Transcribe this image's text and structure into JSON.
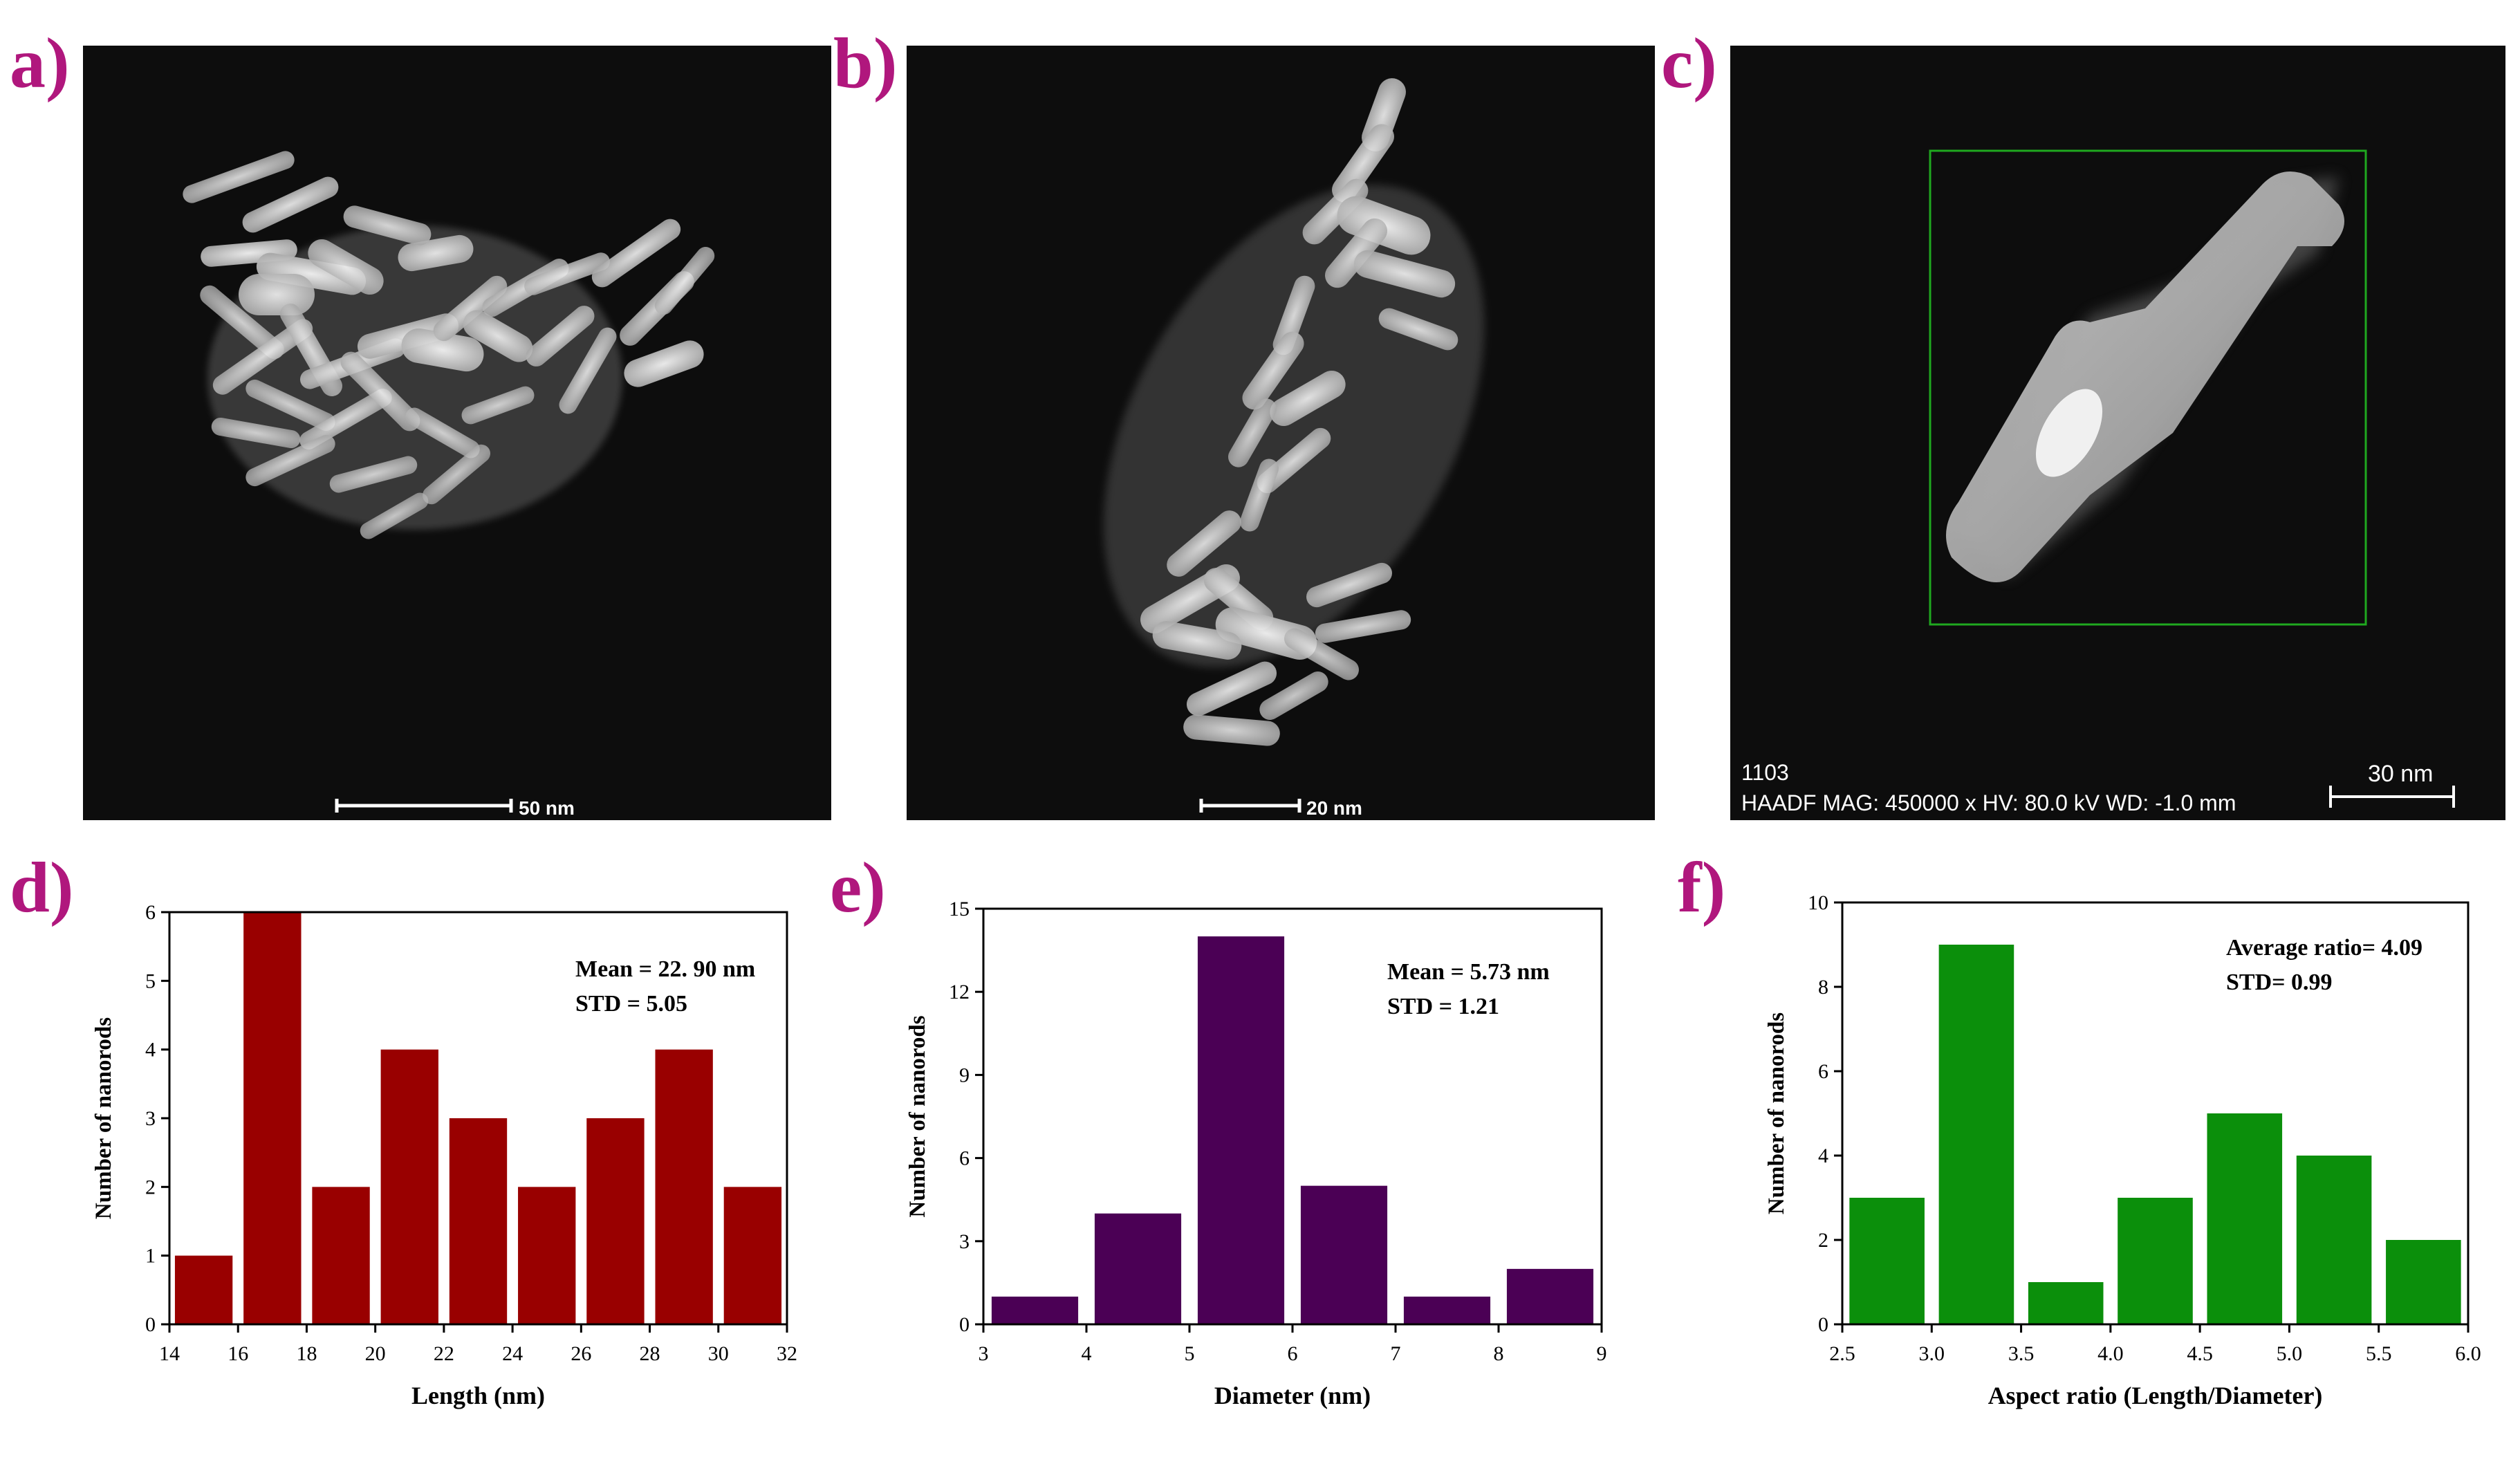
{
  "panel_labels": [
    "a)",
    "b)",
    "c)",
    "d)",
    "e)",
    "f)"
  ],
  "micrographs": {
    "a": {
      "scalebar_label": "50 nm"
    },
    "b": {
      "scalebar_label": "20 nm"
    },
    "c": {
      "image_id": "1103",
      "info_line": "HAADF  MAG: 450000 x  HV: 80.0 kV  WD: -1.0 mm",
      "scalebar_label": "30 nm",
      "roi_color": "#1fa81f"
    }
  },
  "chart_data": [
    {
      "panel": "d",
      "type": "bar",
      "xlabel": "Length (nm)",
      "ylabel": "Number of nanorods",
      "bin_edges": [
        14,
        16,
        18,
        20,
        22,
        24,
        26,
        28,
        30,
        32
      ],
      "values": [
        1,
        6,
        2,
        4,
        3,
        2,
        3,
        4,
        2
      ],
      "xlim": [
        14,
        32
      ],
      "ylim": [
        0,
        6
      ],
      "xticks": [
        "14",
        "16",
        "18",
        "20",
        "22",
        "24",
        "26",
        "28",
        "30",
        "32"
      ],
      "yticks": [
        "0",
        "1",
        "2",
        "3",
        "4",
        "5",
        "6"
      ],
      "annotation": [
        "Mean = 22. 90 nm",
        "STD = 5.05"
      ],
      "color": "#990000"
    },
    {
      "panel": "e",
      "type": "bar",
      "xlabel": "Diameter (nm)",
      "ylabel": "Number of nanorods",
      "bin_edges": [
        3,
        4,
        5,
        6,
        7,
        8,
        9
      ],
      "values": [
        1,
        4,
        14,
        5,
        1,
        2
      ],
      "xlim": [
        3,
        9
      ],
      "ylim": [
        0,
        15
      ],
      "xticks": [
        "3",
        "4",
        "5",
        "6",
        "7",
        "8",
        "9"
      ],
      "yticks": [
        "0",
        "3",
        "6",
        "9",
        "12",
        "15"
      ],
      "annotation": [
        "Mean = 5.73 nm",
        "STD = 1.21"
      ],
      "color": "#4b0055"
    },
    {
      "panel": "f",
      "type": "bar",
      "xlabel": "Aspect ratio (Length/Diameter)",
      "ylabel": "Number of nanorods",
      "bin_edges": [
        2.5,
        3.0,
        3.5,
        4.0,
        4.5,
        5.0,
        5.5,
        6.0
      ],
      "values": [
        3,
        9,
        1,
        3,
        5,
        4,
        2
      ],
      "xlim": [
        2.5,
        6.0
      ],
      "ylim": [
        0,
        10
      ],
      "xticks": [
        "2.5",
        "3.0",
        "3.5",
        "4.0",
        "4.5",
        "5.0",
        "5.5",
        "6.0"
      ],
      "yticks": [
        "0",
        "2",
        "4",
        "6",
        "8",
        "10"
      ],
      "annotation": [
        "Average ratio= 4.09",
        "STD= 0.99"
      ],
      "color": "#0b8f0b"
    }
  ]
}
